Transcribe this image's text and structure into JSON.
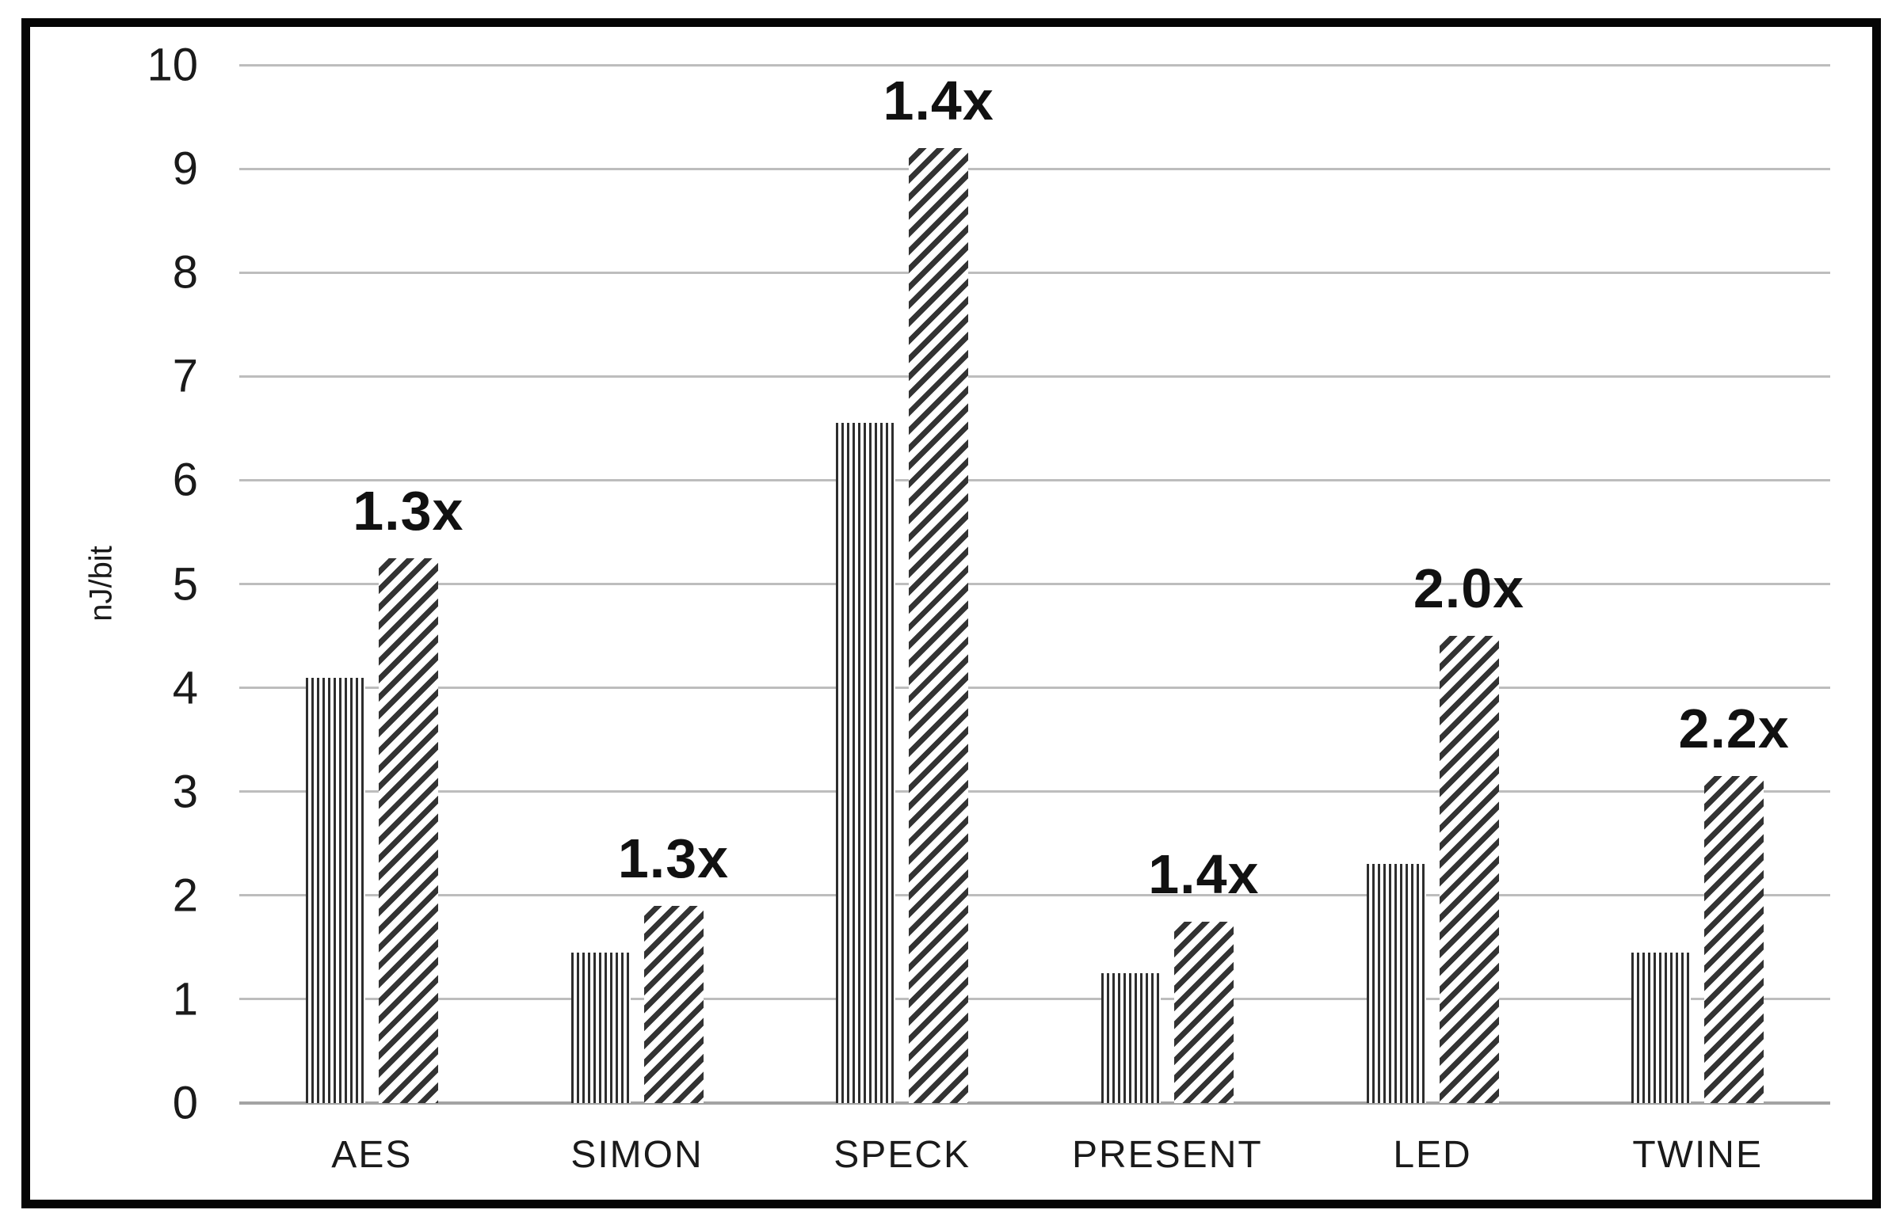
{
  "chart_data": {
    "type": "bar",
    "title": "",
    "ylabel": "nJ/bit",
    "xlabel": "",
    "ylim": [
      0,
      10
    ],
    "yticks": [
      0,
      1,
      2,
      3,
      4,
      5,
      6,
      7,
      8,
      9,
      10
    ],
    "grid": true,
    "legend_position": "none",
    "categories": [
      "AES",
      "SIMON",
      "SPECK",
      "PRESENT",
      "LED",
      "TWINE"
    ],
    "series": [
      {
        "name": "vertical-hatch",
        "pattern": "vertical-stripes",
        "values": [
          4.1,
          1.45,
          6.55,
          1.25,
          2.3,
          1.45
        ]
      },
      {
        "name": "diagonal-hatch",
        "pattern": "diagonal-stripes",
        "values": [
          5.25,
          1.9,
          9.2,
          1.75,
          4.5,
          3.15
        ]
      }
    ],
    "annotations": [
      "1.3x",
      "1.3x",
      "1.4x",
      "1.4x",
      "2.0x",
      "2.2x"
    ],
    "colors": {
      "hatch_dark": "#2e2e2e",
      "gridline": "#bdbdbd",
      "axis_line": "#a3a3a3",
      "frame": "#050505",
      "text": "#1a1a1a",
      "background": "#ffffff"
    }
  }
}
